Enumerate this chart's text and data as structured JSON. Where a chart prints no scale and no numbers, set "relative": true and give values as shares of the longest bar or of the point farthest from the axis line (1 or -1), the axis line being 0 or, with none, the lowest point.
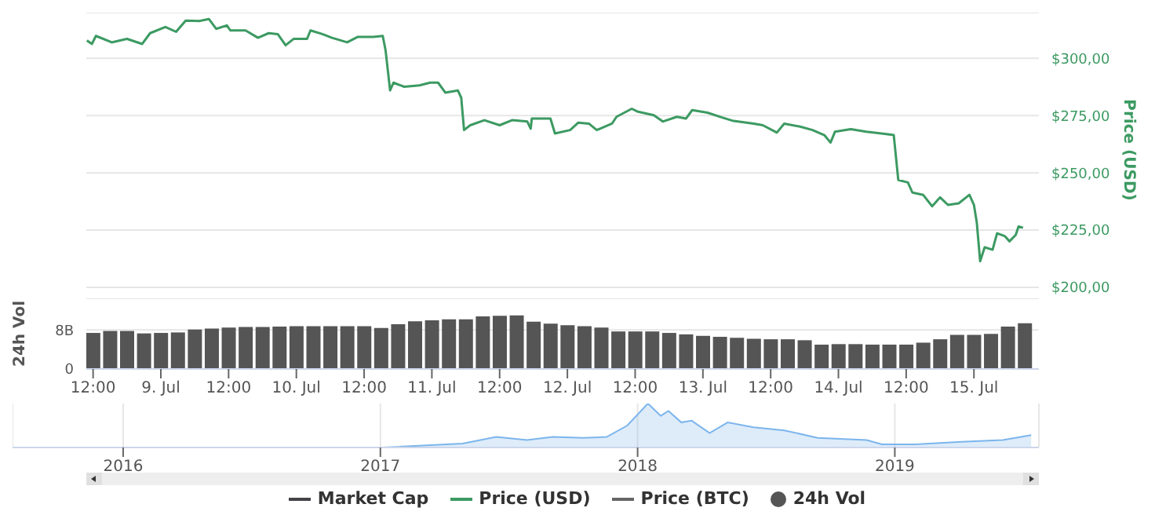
{
  "chart_data": [
    {
      "type": "line",
      "ylabel": "Price (USD)",
      "legend": "bottom",
      "grid": "y",
      "tick_labels": "y",
      "xlim": [
        "--07-08T10:48",
        "--07-15T11:30"
      ],
      "ylim": [
        200,
        320
      ],
      "yticks": [
        {
          "value": 200,
          "label": "$200,00"
        },
        {
          "value": 225,
          "label": "$225,00"
        },
        {
          "value": 250,
          "label": "$250,00"
        },
        {
          "value": 275,
          "label": "$275,00"
        },
        {
          "value": 300,
          "label": "$300,00"
        }
      ],
      "series": [
        {
          "name": "Market Cap",
          "color": "#434348"
        },
        {
          "name": "Price (USD)",
          "color": "#3c9a62",
          "x": [
            "--07-08T10:54",
            "--07-08T11:48",
            "--07-08T12:30",
            "--07-08T15:18",
            "--07-08T18:00",
            "--07-08T20:42",
            "--07-08T22:06",
            "--07-09T00:48",
            "--07-09T02:42",
            "--07-09T04:24",
            "--07-09T06:48",
            "--07-09T08:30",
            "--07-09T09:48",
            "--07-09T11:42",
            "--07-09T12:18",
            "--07-09T15:00",
            "--07-09T17:12",
            "--07-09T19:06",
            "--07-09T20:42",
            "--07-09T22:06",
            "--07-09T23:30",
            "--07-10T01:54",
            "--07-10T02:30",
            "--07-10T04:36",
            "--07-10T06:18",
            "--07-10T09:00",
            "--07-10T10:54",
            "--07-10T13:36",
            "--07-10T15:18",
            "--07-10T15:48",
            "--07-10T16:36",
            "--07-10T17:12",
            "--07-10T19:06",
            "--07-10T21:48",
            "--07-10T23:42",
            "--07-11T01:06",
            "--07-11T02:24",
            "--07-11T04:36",
            "--07-11T05:12",
            "--07-11T05:42",
            "--07-11T06:48",
            "--07-11T09:18",
            "--07-11T12:00",
            "--07-11T14:12",
            "--07-11T16:54",
            "--07-11T17:30",
            "--07-11T17:42",
            "--07-11T21:00",
            "--07-11T21:48",
            "--07-12T00:30",
            "--07-12T01:54",
            "--07-12T03:48",
            "--07-12T05:12",
            "--07-12T07:54",
            "--07-12T08:42",
            "--07-12T11:24",
            "--07-12T12:30",
            "--07-12T15:18",
            "--07-12T16:54",
            "--07-12T19:24",
            "--07-12T21:00",
            "--07-12T22:06",
            "--07-13T00:48",
            "--07-13T03:30",
            "--07-13T05:12",
            "--07-13T09:00",
            "--07-13T10:36",
            "--07-13T13:06",
            "--07-13T14:24",
            "--07-13T17:12",
            "--07-13T19:24",
            "--07-13T21:30",
            "--07-13T22:36",
            "--07-13T23:24",
            "--07-14T02:12",
            "--07-14T04:54",
            "--07-14T07:36",
            "--07-14T09:48",
            "--07-14T10:36",
            "--07-14T12:18",
            "--07-14T13:06",
            "--07-14T15:00",
            "--07-14T16:36",
            "--07-14T18:00",
            "--07-14T19:24",
            "--07-14T21:18",
            "--07-14T23:12",
            "--07-15T00:00",
            "--07-15T00:30",
            "--07-15T01:06",
            "--07-15T01:54",
            "--07-15T03:18",
            "--07-15T04:06",
            "--07-15T05:30",
            "--07-15T06:18",
            "--07-15T07:24",
            "--07-15T07:54",
            "--07-15T08:42"
          ],
          "values": [
            307.8,
            306.3,
            309.8,
            307,
            308.5,
            306.3,
            311,
            313.7,
            311.6,
            316.5,
            316.3,
            317.2,
            312.9,
            314.4,
            312.2,
            312.2,
            309,
            311,
            310.6,
            305.7,
            308.5,
            308.5,
            312.2,
            310.6,
            309,
            307,
            309.4,
            309.4,
            309.8,
            303.5,
            286,
            289.4,
            287.6,
            288.2,
            289.4,
            289.4,
            285,
            286,
            282.8,
            268.7,
            270.8,
            273,
            270.8,
            273,
            272.4,
            269.3,
            273.7,
            273.7,
            267.2,
            268.7,
            271.9,
            271.5,
            268.7,
            271.5,
            274.5,
            278,
            276.7,
            275.2,
            272.4,
            274.5,
            273.7,
            277.4,
            276.3,
            274.1,
            272.8,
            271.5,
            270.8,
            267.6,
            271.5,
            270.2,
            268.7,
            266.5,
            263.2,
            268,
            269.1,
            268,
            267.2,
            266.5,
            246.9,
            245.8,
            241.4,
            240.4,
            235.4,
            239.3,
            236,
            236.7,
            240.4,
            236,
            228.4,
            211.4,
            217.5,
            216.4,
            223.6,
            222.3,
            220.1,
            222.9,
            226.6,
            226
          ]
        },
        {
          "name": "Price (BTC)",
          "color": "#666666"
        }
      ]
    },
    {
      "type": "bar",
      "ylabel": "24h Vol",
      "legend": "bottom",
      "grid": "y",
      "xlim": [
        "--07-08T10:48",
        "--07-15T11:30"
      ],
      "xticks": [
        {
          "value": "--07-08T12:00",
          "label": "12:00"
        },
        {
          "value": "--07-09",
          "label": "9. Jul"
        },
        {
          "value": "--07-09T12:00",
          "label": "12:00"
        },
        {
          "value": "--07-10",
          "label": "10. Jul"
        },
        {
          "value": "--07-10T12:00",
          "label": "12:00"
        },
        {
          "value": "--07-11",
          "label": "11. Jul"
        },
        {
          "value": "--07-11T12:00",
          "label": "12:00"
        },
        {
          "value": "--07-12",
          "label": "12. Jul"
        },
        {
          "value": "--07-12T12:00",
          "label": "12:00"
        },
        {
          "value": "--07-13",
          "label": "13. Jul"
        },
        {
          "value": "--07-13T12:00",
          "label": "12:00"
        },
        {
          "value": "--07-14",
          "label": "14. Jul"
        },
        {
          "value": "--07-14T12:00",
          "label": "12:00"
        },
        {
          "value": "--07-15",
          "label": "15. Jul"
        }
      ],
      "ylim": [
        0,
        14.5
      ],
      "yticks": [
        0,
        {
          "value": 8,
          "label": "8B"
        }
      ],
      "series": [
        {
          "name": "24h Vol",
          "color": "#555555",
          "x": [
            "--07-08T12:00",
            "--07-08T15:00",
            "--07-08T18:00",
            "--07-08T21:00",
            "--07-09T00:00",
            "--07-09T03:00",
            "--07-09T06:00",
            "--07-09T09:00",
            "--07-09T12:00",
            "--07-09T15:00",
            "--07-09T18:00",
            "--07-09T21:00",
            "--07-10T00:00",
            "--07-10T03:00",
            "--07-10T06:00",
            "--07-10T09:00",
            "--07-10T12:00",
            "--07-10T15:00",
            "--07-10T18:00",
            "--07-10T21:00",
            "--07-11T00:00",
            "--07-11T03:00",
            "--07-11T06:00",
            "--07-11T09:00",
            "--07-11T12:00",
            "--07-11T15:00",
            "--07-11T18:00",
            "--07-11T21:00",
            "--07-12T00:00",
            "--07-12T03:00",
            "--07-12T06:00",
            "--07-12T09:00",
            "--07-12T12:00",
            "--07-12T15:00",
            "--07-12T18:00",
            "--07-12T21:00",
            "--07-13T00:00",
            "--07-13T03:00",
            "--07-13T06:00",
            "--07-13T09:00",
            "--07-13T12:00",
            "--07-13T15:00",
            "--07-13T18:00",
            "--07-13T21:00",
            "--07-14T00:00",
            "--07-14T03:00",
            "--07-14T06:00",
            "--07-14T09:00",
            "--07-14T12:00",
            "--07-14T15:00",
            "--07-14T18:00",
            "--07-14T21:00",
            "--07-15T00:00",
            "--07-15T03:00",
            "--07-15T06:00",
            "--07-15T09:00"
          ],
          "values": [
            7.4,
            7.8,
            7.8,
            7.3,
            7.4,
            7.5,
            8.1,
            8.3,
            8.5,
            8.6,
            8.6,
            8.7,
            8.8,
            8.8,
            8.8,
            8.8,
            8.8,
            8.4,
            9.2,
            9.8,
            10,
            10.2,
            10.2,
            10.8,
            10.9,
            11,
            9.7,
            9.3,
            9,
            8.8,
            8.5,
            7.7,
            7.7,
            7.7,
            7.4,
            7.1,
            6.8,
            6.6,
            6.4,
            6.2,
            6.1,
            6.1,
            5.9,
            5,
            5.1,
            5.1,
            5,
            5,
            5,
            5.4,
            6.1,
            7,
            7,
            7.2,
            8.7,
            9.4
          ]
        }
      ]
    },
    {
      "type": "area",
      "relative": true,
      "grid": "x",
      "xlim": [
        2015.57,
        2019.56
      ],
      "xticks": [
        2016,
        2017,
        2018,
        2019
      ],
      "series": [
        {
          "color": "#7cb5ec",
          "x": [
            2015.61,
            2017.01,
            2017.32,
            2017.45,
            2017.57,
            2017.67,
            2017.79,
            2017.88,
            2017.96,
            2018.04,
            2018.09,
            2018.12,
            2018.17,
            2018.21,
            2018.28,
            2018.35,
            2018.45,
            2018.57,
            2018.7,
            2018.89,
            2018.95,
            2019.08,
            2019.26,
            2019.42,
            2019.53
          ],
          "values": [
            0,
            0,
            0.09,
            0.24,
            0.17,
            0.24,
            0.22,
            0.24,
            0.5,
            1,
            0.72,
            0.83,
            0.57,
            0.61,
            0.33,
            0.57,
            0.46,
            0.39,
            0.22,
            0.17,
            0.07,
            0.07,
            0.13,
            0.17,
            0.28
          ]
        }
      ]
    }
  ]
}
